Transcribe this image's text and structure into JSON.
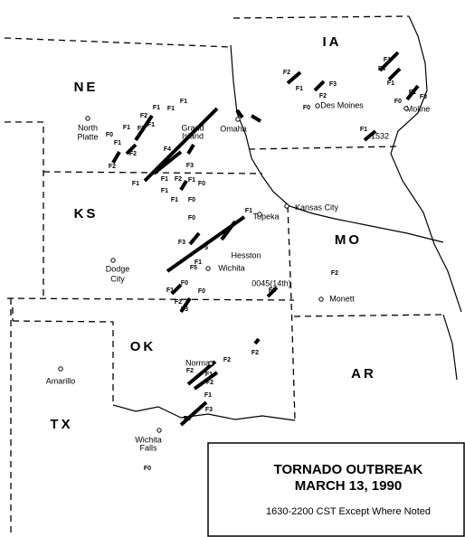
{
  "title": {
    "line1": "TORNADO OUTBREAK",
    "line2": "MARCH 13, 1990",
    "subtitle": "1630-2200 CST Except Where Noted"
  },
  "states": [
    "NE",
    "IA",
    "KS",
    "MO",
    "OK",
    "AR",
    "TX"
  ],
  "cities": [
    "North",
    "Platte",
    "Grand",
    "Island",
    "Omaha",
    "Des Moines",
    "Moline",
    "Kansas City",
    "Topeka",
    "Hesston",
    "Wichita",
    "Dodge",
    "City",
    "Monett",
    "Amarillo",
    "Norman",
    "Wichita",
    "Falls"
  ],
  "notes": [
    "1532",
    "0045(14th)"
  ],
  "ratings": [
    "F2",
    "F1",
    "F3",
    "F2",
    "F0",
    "F1",
    "F4",
    "F1",
    "F1",
    "F0",
    "F3",
    "F1",
    "F1",
    "F1",
    "F1",
    "F2",
    "F1",
    "F3",
    "F1",
    "F0",
    "F1",
    "F2",
    "F2",
    "F4",
    "F3",
    "F1",
    "F1",
    "F2",
    "F1",
    "F0",
    "F1",
    "F1",
    "F0",
    "F0",
    "F1",
    "F3",
    "F5",
    "F1",
    "F5",
    "F0",
    "F1",
    "F0",
    "F2",
    "F3",
    "F1",
    "F2",
    "F2",
    "F2",
    "F2",
    "F1",
    "F2",
    "F1",
    "F3",
    "F1",
    "F0"
  ]
}
